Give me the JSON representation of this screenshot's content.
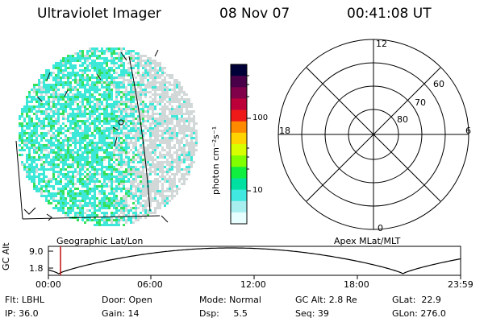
{
  "header": {
    "title": "Ultraviolet Imager",
    "date": "08 Nov 07",
    "time": "00:41:08 UT"
  },
  "left_panel": {
    "caption": "Geographic Lat/Lon",
    "cyan_color": "#3ee8d8",
    "green_color": "#35e05a",
    "gray_color": "#d2d8d8"
  },
  "colorbar": {
    "label": "photon cm⁻²s⁻¹",
    "ticks": [
      "100",
      "10"
    ],
    "colors": [
      "#000038",
      "#4a0048",
      "#80004a",
      "#bb003a",
      "#ee1a1a",
      "#ff8a00",
      "#ffd400",
      "#d8ff00",
      "#80ff00",
      "#10ee40",
      "#00e0a0",
      "#40e8e0",
      "#a8f0f0",
      "#e8ffff"
    ]
  },
  "polar_plot": {
    "caption": "Apex MLat/MLT",
    "mlt_labels": {
      "top": "12",
      "left": "18",
      "right": "6",
      "bottom": "0"
    },
    "lat_labels": [
      "60",
      "70",
      "80"
    ]
  },
  "gc_alt_strip": {
    "axis_label": "GC Alt",
    "y_ticks": [
      "9.0",
      "1.8"
    ],
    "x_ticks": [
      "00:00",
      "06:00",
      "12:00",
      "18:00",
      "23:59"
    ],
    "marker_color": "#c01010"
  },
  "status": {
    "flt": "Flt: LBHL",
    "ip": "IP: 36.0",
    "door": "Door: Open",
    "gain": "Gain: 14",
    "mode": "Mode: Normal",
    "dsp": "Dsp:     5.5",
    "gc_alt": "GC Alt: 2.8 Re",
    "seq": "Seq: 39",
    "glat": "GLat:  22.9",
    "glon": "GLon: 276.0"
  }
}
